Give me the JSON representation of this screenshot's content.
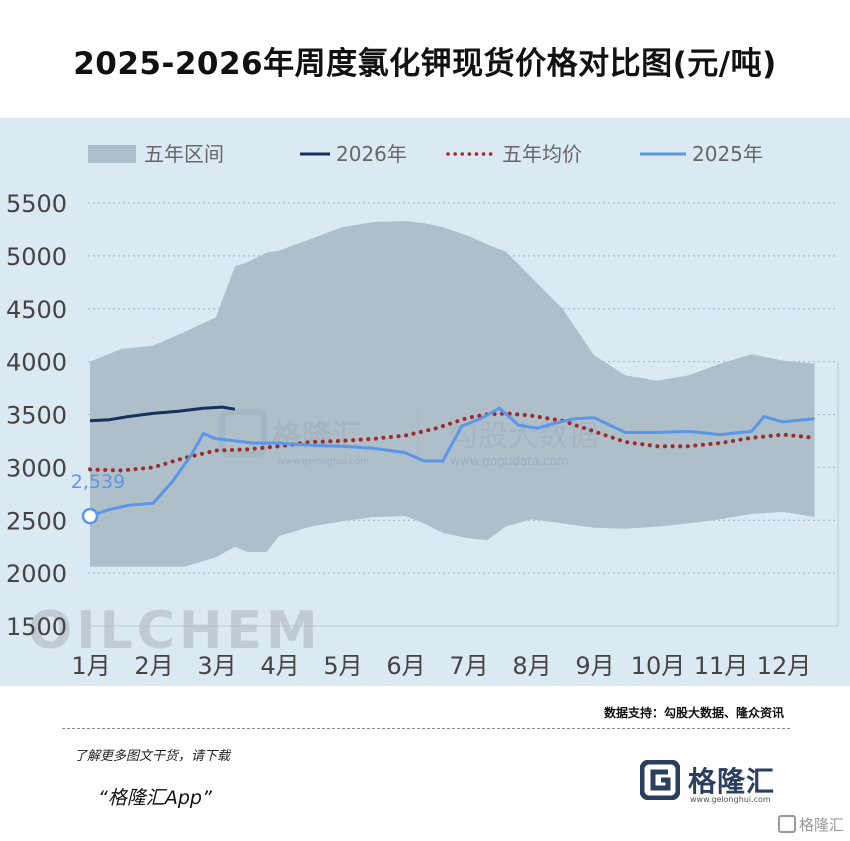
{
  "title": "2025-2026年周度氯化钾现货价格对比图(元/吨)",
  "source_note": "数据支持：勾股大数据、隆众资讯",
  "promo": {
    "line1": "了解更多图文干货，请下载",
    "line2": "“格隆汇App”"
  },
  "brand": {
    "name": "格隆汇",
    "url": "www.gelonghui.com"
  },
  "watermarks": {
    "center_left": "格隆汇",
    "center_left_url": "www.gelonghui.com",
    "center_right": "勾股大数据",
    "center_right_url": "www.gogudata.com",
    "corner": "OILCHEM",
    "bottom_right": "格隆汇"
  },
  "colors": {
    "band": "#aebfca",
    "s2026": "#15325e",
    "avg": "#9e2b2b",
    "s2025": "#5b97e6",
    "grid": "#9fb3c2"
  },
  "chart_data": {
    "type": "line",
    "x_categories": [
      "1月",
      "2月",
      "3月",
      "4月",
      "5月",
      "6月",
      "7月",
      "8月",
      "9月",
      "10月",
      "11月",
      "12月"
    ],
    "ylim": [
      1500,
      5500
    ],
    "yticks": [
      1500,
      2000,
      2500,
      3000,
      3500,
      4000,
      4500,
      5000,
      5500
    ],
    "grid": "horizontal dotted",
    "legend_position": "top",
    "annotation": {
      "text": "2,539",
      "x_month": 1.0,
      "y": 2539
    },
    "series": [
      {
        "name": "五年区间",
        "kind": "band",
        "x": [
          1.0,
          1.5,
          2.0,
          2.5,
          3.0,
          3.3,
          3.5,
          3.8,
          4.0,
          4.5,
          5.0,
          5.5,
          6.0,
          6.3,
          6.6,
          7.0,
          7.3,
          7.6,
          8.0,
          8.5,
          9.0,
          9.5,
          10.0,
          10.5,
          11.0,
          11.5,
          12.0,
          12.5
        ],
        "upper": [
          4000,
          4120,
          4150,
          4280,
          4420,
          4900,
          4940,
          5030,
          5050,
          5160,
          5270,
          5320,
          5330,
          5310,
          5270,
          5190,
          5110,
          5040,
          4800,
          4500,
          4060,
          3870,
          3820,
          3870,
          3980,
          4070,
          4010,
          3980
        ],
        "lower": [
          2060,
          2060,
          2060,
          2060,
          2150,
          2250,
          2200,
          2200,
          2350,
          2440,
          2490,
          2530,
          2540,
          2470,
          2380,
          2330,
          2310,
          2440,
          2510,
          2470,
          2430,
          2420,
          2440,
          2470,
          2510,
          2560,
          2580,
          2530
        ]
      },
      {
        "name": "2026年",
        "kind": "line",
        "x": [
          1.0,
          1.3,
          1.6,
          2.0,
          2.4,
          2.8,
          3.1,
          3.3
        ],
        "values": [
          3440,
          3450,
          3480,
          3510,
          3530,
          3560,
          3570,
          3550
        ]
      },
      {
        "name": "五年均价",
        "kind": "dotted",
        "x": [
          1.0,
          1.5,
          2.0,
          2.5,
          3.0,
          3.5,
          4.0,
          4.5,
          5.0,
          5.5,
          6.0,
          6.5,
          7.0,
          7.3,
          7.6,
          8.0,
          8.5,
          9.0,
          9.5,
          10.0,
          10.5,
          11.0,
          11.5,
          12.0,
          12.5
        ],
        "values": [
          2980,
          2970,
          3000,
          3090,
          3160,
          3170,
          3200,
          3240,
          3250,
          3270,
          3300,
          3370,
          3470,
          3500,
          3510,
          3490,
          3440,
          3340,
          3240,
          3200,
          3200,
          3230,
          3280,
          3310,
          3280
        ]
      },
      {
        "name": "2025年",
        "kind": "line",
        "x": [
          1.0,
          1.3,
          1.6,
          2.0,
          2.3,
          2.6,
          2.8,
          3.0,
          3.3,
          3.6,
          4.0,
          4.5,
          5.0,
          5.5,
          6.0,
          6.3,
          6.6,
          6.9,
          7.2,
          7.5,
          7.8,
          8.1,
          8.4,
          8.7,
          9.0,
          9.5,
          10.0,
          10.5,
          11.0,
          11.5,
          11.7,
          12.0,
          12.5
        ],
        "values": [
          2539,
          2600,
          2640,
          2660,
          2860,
          3110,
          3320,
          3270,
          3250,
          3230,
          3230,
          3210,
          3200,
          3180,
          3140,
          3060,
          3060,
          3390,
          3460,
          3560,
          3400,
          3370,
          3420,
          3460,
          3470,
          3330,
          3330,
          3340,
          3310,
          3340,
          3480,
          3430,
          3460
        ]
      }
    ]
  }
}
